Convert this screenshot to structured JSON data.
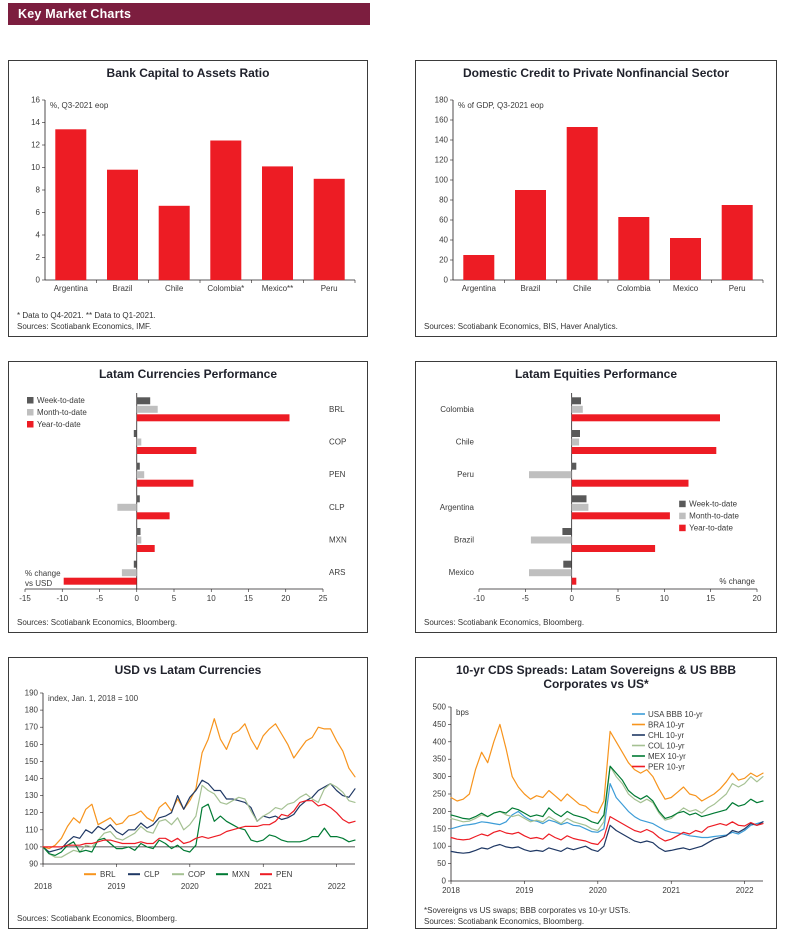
{
  "header": {
    "title": "Key Market Charts"
  },
  "colors": {
    "header_bg": "#7C1E3F",
    "bar_red": "#ED1C24",
    "dark_gray": "#595959",
    "light_gray": "#BFBFBF",
    "orange": "#F7941D",
    "navy": "#1F3864",
    "sage_green": "#A5C193",
    "dark_green": "#007A33",
    "light_blue": "#3C9CD7"
  },
  "chart_data": [
    {
      "id": "bank-capital-to-assets",
      "type": "bar",
      "title": "Bank Capital to Assets Ratio",
      "inner_label": "%, Q3-2021 eop",
      "categories": [
        "Argentina",
        "Brazil",
        "Chile",
        "Colombia*",
        "Mexico**",
        "Peru"
      ],
      "values": [
        13.4,
        9.8,
        6.6,
        12.4,
        10.1,
        9.0
      ],
      "ylim": [
        0,
        16
      ],
      "ytick_step": 2,
      "grid": false,
      "bar_color": "#ED1C24",
      "footnote": "* Data to Q4-2021. ** Data to Q1-2021.",
      "source": "Sources: Scotiabank Economics, IMF."
    },
    {
      "id": "domestic-credit-private-nonfinancial",
      "type": "bar",
      "title": "Domestic Credit to Private Nonfinancial Sector",
      "inner_label": "% of GDP, Q3-2021 eop",
      "categories": [
        "Argentina",
        "Brazil",
        "Chile",
        "Colombia",
        "Mexico",
        "Peru"
      ],
      "values": [
        25,
        90,
        153,
        63,
        42,
        75
      ],
      "ylim": [
        0,
        180
      ],
      "ytick_step": 20,
      "grid": false,
      "bar_color": "#ED1C24",
      "footnote": "",
      "source": "Sources: Scotiabank Economics, BIS, Haver Analytics."
    },
    {
      "id": "latam-currencies-performance",
      "type": "hbar",
      "title": "Latam Currencies Performance",
      "categories": [
        "BRL",
        "COP",
        "PEN",
        "CLP",
        "MXN",
        "ARS"
      ],
      "series": [
        {
          "name": "Week-to-date",
          "color": "#595959",
          "values": [
            1.8,
            -0.4,
            0.4,
            0.4,
            0.5,
            -0.4
          ]
        },
        {
          "name": "Month-to-date",
          "color": "#BFBFBF",
          "values": [
            2.8,
            0.6,
            1.0,
            -2.6,
            0.6,
            -2.0
          ]
        },
        {
          "name": "Year-to-date",
          "color": "#ED1C24",
          "values": [
            20.5,
            8.0,
            7.6,
            4.4,
            2.4,
            -9.8
          ]
        }
      ],
      "xlim": [
        -15,
        25
      ],
      "xtick_step": 5,
      "labels_side": "right",
      "legend_pos": "top-left",
      "corner_label": "% change\nvs USD",
      "footnote": "",
      "source": "Sources: Scotiabank Economics, Bloomberg."
    },
    {
      "id": "latam-equities-performance",
      "type": "hbar",
      "title": "Latam Equities Performance",
      "categories": [
        "Colombia",
        "Chile",
        "Peru",
        "Argentina",
        "Brazil",
        "Mexico"
      ],
      "series": [
        {
          "name": "Week-to-date",
          "color": "#595959",
          "values": [
            1.0,
            0.9,
            0.5,
            1.6,
            -1.0,
            -0.9
          ]
        },
        {
          "name": "Month-to-date",
          "color": "#BFBFBF",
          "values": [
            1.2,
            0.8,
            -4.6,
            1.8,
            -4.4,
            -4.6
          ]
        },
        {
          "name": "Year-to-date",
          "color": "#ED1C24",
          "values": [
            16.0,
            15.6,
            12.6,
            10.6,
            9.0,
            0.5
          ]
        }
      ],
      "xlim": [
        -10,
        20
      ],
      "xtick_step": 5,
      "labels_side": "left",
      "legend_pos": "mid-right",
      "corner_label": "% change",
      "footnote": "",
      "source": "Sources: Scotiabank Economics, Bloomberg."
    },
    {
      "id": "usd-vs-latam-currencies",
      "type": "line",
      "title": "USD vs Latam Currencies",
      "inner_label": "index, Jan. 1, 2018 = 100",
      "ylim": [
        90,
        190
      ],
      "ytick_step": 10,
      "baseline": 100,
      "x_ticks": [
        "2018",
        "2019",
        "2020",
        "2021",
        "2022"
      ],
      "x_tick_idx": [
        0,
        12,
        24,
        36,
        48
      ],
      "n_points": 52,
      "legend_pos": "bottom",
      "series": [
        {
          "name": "BRL",
          "color": "#F7941D",
          "values": [
            100,
            99,
            101,
            105,
            112,
            117,
            114,
            122,
            125,
            113,
            115,
            117,
            113,
            114,
            118,
            119,
            121,
            117,
            115,
            123,
            126,
            121,
            128,
            122,
            127,
            134,
            155,
            163,
            175,
            163,
            157,
            166,
            168,
            172,
            163,
            157,
            165,
            169,
            172,
            166,
            160,
            152,
            157,
            162,
            164,
            170,
            169,
            169,
            162,
            156,
            146,
            141
          ]
        },
        {
          "name": "CLP",
          "color": "#1F3864",
          "values": [
            100,
            97,
            98,
            99,
            103,
            106,
            105,
            110,
            108,
            112,
            110,
            113,
            109,
            107,
            110,
            110,
            114,
            111,
            113,
            117,
            118,
            120,
            130,
            122,
            129,
            133,
            139,
            137,
            133,
            133,
            128,
            128,
            127,
            126,
            123,
            115,
            118,
            117,
            118,
            116,
            117,
            119,
            124,
            127,
            129,
            133,
            135,
            137,
            133,
            130,
            129,
            134
          ]
        },
        {
          "name": "COP",
          "color": "#A5C193",
          "values": [
            100,
            96,
            94,
            94,
            96,
            98,
            97,
            101,
            100,
            104,
            108,
            109,
            105,
            104,
            106,
            108,
            112,
            109,
            108,
            115,
            116,
            113,
            117,
            110,
            113,
            118,
            136,
            133,
            131,
            126,
            125,
            127,
            129,
            128,
            121,
            115,
            118,
            120,
            123,
            122,
            125,
            126,
            129,
            131,
            128,
            126,
            134,
            137,
            135,
            132,
            127,
            126
          ]
        },
        {
          "name": "MXN",
          "color": "#007A33",
          "values": [
            100,
            96,
            95,
            97,
            101,
            103,
            97,
            98,
            97,
            104,
            105,
            102,
            99,
            99,
            100,
            98,
            102,
            100,
            99,
            104,
            102,
            99,
            101,
            98,
            97,
            101,
            123,
            125,
            115,
            118,
            115,
            113,
            111,
            110,
            104,
            103,
            104,
            107,
            106,
            104,
            103,
            103,
            103,
            104,
            106,
            106,
            111,
            106,
            106,
            105,
            103,
            104
          ]
        },
        {
          "name": "PEN",
          "color": "#ED1C24",
          "values": [
            100,
            100,
            100,
            100,
            101,
            101,
            101,
            102,
            102,
            103,
            104,
            104,
            103,
            102,
            102,
            102,
            103,
            102,
            102,
            105,
            105,
            103,
            105,
            102,
            103,
            105,
            106,
            105,
            106,
            107,
            109,
            110,
            111,
            112,
            112,
            112,
            113,
            113,
            115,
            119,
            118,
            121,
            126,
            127,
            127,
            124,
            125,
            123,
            120,
            116,
            114,
            115
          ]
        }
      ],
      "footnote": "",
      "source": "Sources: Scotiabank Economics, Bloomberg."
    },
    {
      "id": "cds-spreads",
      "type": "line",
      "title": "10-yr CDS Spreads: Latam Sovereigns & US BBB Corporates vs US*",
      "inner_label": "bps",
      "ylim": [
        0,
        500
      ],
      "ytick_step": 50,
      "baseline": null,
      "x_ticks": [
        "2018",
        "2019",
        "2020",
        "2021",
        "2022"
      ],
      "x_tick_idx": [
        0,
        12,
        24,
        36,
        48
      ],
      "n_points": 52,
      "legend_pos": "top-right",
      "series": [
        {
          "name": "USA BBB 10-yr",
          "color": "#3C9CD7",
          "values": [
            150,
            155,
            160,
            162,
            165,
            170,
            168,
            165,
            162,
            170,
            190,
            200,
            185,
            175,
            172,
            165,
            175,
            170,
            162,
            168,
            160,
            158,
            150,
            142,
            140,
            150,
            280,
            240,
            220,
            200,
            185,
            175,
            170,
            165,
            155,
            145,
            140,
            138,
            135,
            130,
            128,
            125,
            125,
            128,
            130,
            132,
            140,
            135,
            145,
            160,
            165,
            170
          ]
        },
        {
          "name": "BRA 10-yr",
          "color": "#F7941D",
          "values": [
            240,
            230,
            235,
            250,
            320,
            370,
            340,
            400,
            450,
            380,
            300,
            270,
            250,
            235,
            245,
            240,
            260,
            245,
            230,
            250,
            235,
            220,
            215,
            200,
            195,
            230,
            430,
            400,
            370,
            340,
            320,
            310,
            320,
            300,
            265,
            235,
            240,
            255,
            270,
            250,
            245,
            230,
            240,
            250,
            265,
            285,
            310,
            290,
            295,
            310,
            300,
            310
          ]
        },
        {
          "name": "CHL 10-yr",
          "color": "#1F3864",
          "values": [
            85,
            82,
            80,
            82,
            88,
            95,
            92,
            100,
            105,
            98,
            95,
            98,
            90,
            85,
            88,
            85,
            95,
            90,
            85,
            95,
            90,
            95,
            100,
            90,
            85,
            100,
            160,
            145,
            135,
            125,
            115,
            110,
            115,
            110,
            95,
            85,
            88,
            92,
            95,
            90,
            95,
            100,
            110,
            120,
            125,
            130,
            145,
            140,
            150,
            165,
            160,
            170
          ]
        },
        {
          "name": "COL 10-yr",
          "color": "#A5C193",
          "values": [
            180,
            175,
            170,
            172,
            180,
            190,
            185,
            195,
            200,
            190,
            185,
            190,
            180,
            170,
            175,
            170,
            185,
            175,
            165,
            180,
            170,
            165,
            160,
            150,
            145,
            170,
            330,
            300,
            280,
            250,
            235,
            225,
            235,
            225,
            195,
            175,
            180,
            195,
            210,
            200,
            205,
            195,
            210,
            220,
            235,
            250,
            280,
            270,
            280,
            300,
            285,
            300
          ]
        },
        {
          "name": "MEX 10-yr",
          "color": "#007A33",
          "values": [
            190,
            185,
            180,
            178,
            185,
            195,
            185,
            195,
            200,
            195,
            210,
            205,
            195,
            185,
            190,
            185,
            210,
            195,
            185,
            200,
            190,
            185,
            180,
            170,
            165,
            190,
            330,
            310,
            290,
            260,
            245,
            235,
            245,
            230,
            200,
            180,
            185,
            195,
            200,
            190,
            195,
            185,
            190,
            195,
            200,
            205,
            225,
            215,
            220,
            235,
            225,
            230
          ]
        },
        {
          "name": "PER 10-yr",
          "color": "#ED1C24",
          "values": [
            125,
            120,
            118,
            120,
            128,
            135,
            130,
            140,
            145,
            138,
            135,
            140,
            130,
            122,
            125,
            120,
            135,
            125,
            118,
            130,
            122,
            118,
            115,
            108,
            105,
            125,
            185,
            175,
            165,
            155,
            145,
            140,
            148,
            140,
            125,
            115,
            120,
            130,
            140,
            135,
            145,
            140,
            155,
            160,
            165,
            160,
            170,
            160,
            158,
            168,
            160,
            165
          ]
        }
      ],
      "footnote": "*Sovereigns vs US swaps; BBB corporates vs 10-yr USTs.",
      "source": "Sources: Scotiabank Economics, Bloomberg."
    }
  ]
}
